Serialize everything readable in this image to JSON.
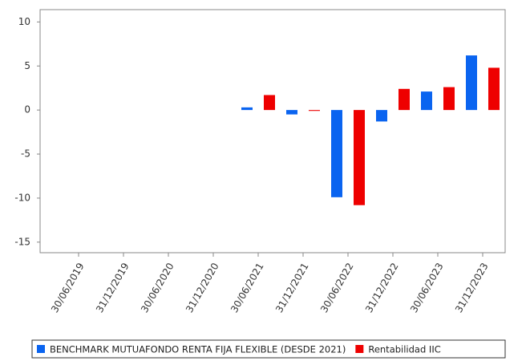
{
  "chart_data": {
    "type": "bar",
    "categories": [
      "30/06/2019",
      "31/12/2019",
      "30/06/2020",
      "31/12/2020",
      "30/06/2021",
      "31/12/2021",
      "30/06/2022",
      "31/12/2022",
      "30/06/2023",
      "31/12/2023"
    ],
    "series": [
      {
        "name": "BENCHMARK MUTUAFONDO RENTA FIJA FLEXIBLE (DESDE 2021)",
        "color": "#0a64f0",
        "values": [
          null,
          null,
          null,
          null,
          0.3,
          -0.5,
          -9.9,
          -1.3,
          2.1,
          6.2
        ]
      },
      {
        "name": "Rentabilidad IIC",
        "color": "#ee0000",
        "values": [
          null,
          null,
          null,
          null,
          1.7,
          -0.1,
          -10.8,
          2.4,
          2.6,
          4.8
        ]
      }
    ],
    "ylim": [
      -16.2,
      11.4
    ],
    "yticks": [
      10,
      5,
      0,
      -5,
      -10,
      -15
    ]
  }
}
